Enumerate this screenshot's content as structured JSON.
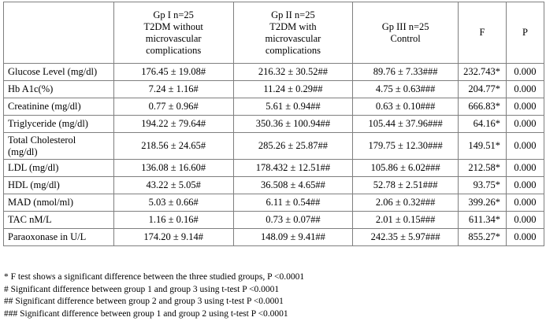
{
  "table": {
    "headers": [
      {
        "lines": []
      },
      {
        "lines": [
          "Gp I n=25",
          "T2DM without",
          "microvascular",
          "complications"
        ]
      },
      {
        "lines": [
          "Gp II n=25",
          "T2DM with",
          "microvascular",
          "complications"
        ]
      },
      {
        "lines": [
          "Gp III n=25",
          "Control"
        ]
      },
      {
        "lines": [
          "F"
        ]
      },
      {
        "lines": [
          "P"
        ]
      }
    ],
    "rows": [
      {
        "label_lines": [
          "Glucose Level (mg/dl)"
        ],
        "gp1": "176.45 ± 19.08#",
        "gp2": "216.32 ± 30.52##",
        "gp3": "89.76 ± 7.33###",
        "f": "232.743*",
        "p": "0.000"
      },
      {
        "label_lines": [
          "Hb A1c(%)"
        ],
        "gp1": "7.24 ± 1.16#",
        "gp2": "11.24 ± 0.29##",
        "gp3": "4.75 ± 0.63###",
        "f": "204.77*",
        "p": "0.000"
      },
      {
        "label_lines": [
          "Creatinine (mg/dl)"
        ],
        "gp1": "0.77 ± 0.96#",
        "gp2": "5.61 ± 0.94##",
        "gp3": "0.63 ± 0.10###",
        "f": "666.83*",
        "p": "0.000"
      },
      {
        "label_lines": [
          "Triglyceride (mg/dl)"
        ],
        "gp1": "194.22 ± 79.64#",
        "gp2": "350.36 ± 100.94##",
        "gp3": "105.44 ± 37.96###",
        "f": "64.16*",
        "p": "0.000"
      },
      {
        "label_lines": [
          "Total Cholesterol",
          "(mg/dl)"
        ],
        "gp1": "218.56 ± 24.65#",
        "gp2": "285.26 ± 25.87##",
        "gp3": "179.75 ± 12.30###",
        "f": "149.51*",
        "p": "0.000"
      },
      {
        "label_lines": [
          "LDL (mg/dl)"
        ],
        "gp1": "136.08 ± 16.60#",
        "gp2": "178.432 ± 12.51##",
        "gp3": "105.86 ± 6.02###",
        "f": "212.58*",
        "p": "0.000"
      },
      {
        "label_lines": [
          "HDL (mg/dl)"
        ],
        "gp1": "43.22 ± 5.05#",
        "gp2": "36.508 ± 4.65##",
        "gp3": "52.78 ± 2.51###",
        "f": "93.75*",
        "p": "0.000"
      },
      {
        "label_lines": [
          "MAD (nmol/ml)"
        ],
        "gp1": "5.03 ± 0.66#",
        "gp2": "6.11 ± 0.54##",
        "gp3": "2.06 ± 0.32###",
        "f": "399.26*",
        "p": "0.000"
      },
      {
        "label_lines": [
          "TAC nM/L"
        ],
        "gp1": "1.16 ± 0.16#",
        "gp2": "0.73 ± 0.07##",
        "gp3": "2.01 ± 0.15###",
        "f": "611.34*",
        "p": "0.000"
      },
      {
        "label_lines": [
          "Paraoxonase in U/L"
        ],
        "gp1": "174.20 ± 9.14#",
        "gp2": "148.09 ± 9.41##",
        "gp3": "242.35 ± 5.97###",
        "f": "855.27*",
        "p": "0.000"
      }
    ]
  },
  "footnotes": [
    "* F test shows a significant difference between the three studied groups, P <0.0001",
    "# Significant difference between group 1 and group 3 using t-test  P <0.0001",
    "## Significant difference between group 2 and group 3 using t-test P <0.0001",
    "### Significant difference between group 1 and group 2 using t-test P <0.0001"
  ]
}
